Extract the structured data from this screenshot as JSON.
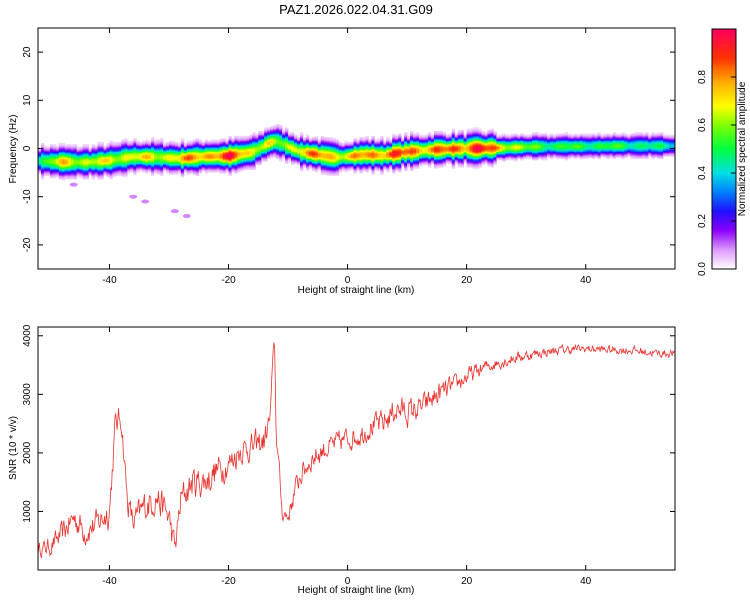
{
  "title": "PAZ1.2026.022.04.31.G09",
  "chart_data": [
    {
      "type": "heatmap",
      "xlabel": "Height of straight line (km)",
      "ylabel": "Frequency (Hz)",
      "xlim": [
        -52,
        55
      ],
      "ylim": [
        -25,
        25
      ],
      "xticks": [
        -40,
        -20,
        0,
        20,
        40
      ],
      "xtick_labels": [
        "-40",
        "-20",
        "0",
        "20",
        "40"
      ],
      "yticks": [
        -20,
        -10,
        0,
        10,
        20
      ],
      "ytick_labels": [
        "-20",
        "-10",
        "0",
        "10",
        "20"
      ],
      "colorbar": {
        "label": "Normalized spectral amplitude",
        "range": [
          0,
          1
        ],
        "ticks": [
          0.0,
          0.2,
          0.4,
          0.6,
          0.8
        ],
        "tick_labels": [
          "0.0",
          "0.2",
          "0.4",
          "0.6",
          "0.8"
        ]
      },
      "ridge": {
        "height_km": [
          -52,
          -48,
          -44,
          -40,
          -36,
          -32,
          -28,
          -24,
          -20,
          -16,
          -13,
          -12,
          -10,
          -8,
          -5,
          -2,
          0,
          3,
          6,
          10,
          14,
          18,
          22,
          26,
          30,
          35,
          40,
          45,
          50,
          55
        ],
        "frequency_hz": [
          -2.5,
          -2.7,
          -2.8,
          -2.4,
          -1.6,
          -1.7,
          -2.0,
          -1.6,
          -1.5,
          -0.7,
          1.3,
          1.6,
          0.5,
          -0.6,
          -1.2,
          -1.8,
          -1.6,
          -1.2,
          -1.4,
          -0.6,
          -0.2,
          0.0,
          0.1,
          0.2,
          0.4,
          0.5,
          0.5,
          0.6,
          0.6,
          0.6
        ],
        "peak_amplitude": [
          0.5,
          0.75,
          0.7,
          0.7,
          0.75,
          0.7,
          0.8,
          0.85,
          0.95,
          0.75,
          0.7,
          0.6,
          0.7,
          0.8,
          0.85,
          0.8,
          0.75,
          0.85,
          0.9,
          0.9,
          0.85,
          0.9,
          0.98,
          0.8,
          0.6,
          0.55,
          0.55,
          0.55,
          0.5,
          0.45
        ]
      },
      "scatter_blobs": [
        {
          "height_km": -46,
          "frequency_hz": -7.5
        },
        {
          "height_km": -36,
          "frequency_hz": -10.0
        },
        {
          "height_km": -34,
          "frequency_hz": -11.0
        },
        {
          "height_km": -29,
          "frequency_hz": -13.0
        },
        {
          "height_km": -27,
          "frequency_hz": -14.0
        }
      ]
    },
    {
      "type": "line",
      "xlabel": "Height of straight line (km)",
      "ylabel": "SNR (10 * v/v)",
      "xlim": [
        -52,
        55
      ],
      "ylim": [
        0,
        4150
      ],
      "xticks": [
        -40,
        -20,
        0,
        20,
        40
      ],
      "xtick_labels": [
        "-40",
        "-20",
        "0",
        "20",
        "40"
      ],
      "yticks": [
        1000,
        2000,
        3000,
        4000
      ],
      "ytick_labels": [
        "1000",
        "2000",
        "3000",
        "4000"
      ],
      "series": [
        {
          "name": "SNR",
          "color": "#e8322e",
          "x": [
            -52,
            -50,
            -48,
            -46,
            -44,
            -42,
            -40,
            -39,
            -38,
            -37,
            -36,
            -34,
            -32,
            -30,
            -29,
            -28,
            -26,
            -24,
            -22,
            -20,
            -18,
            -16,
            -14,
            -13,
            -12.3,
            -12,
            -11,
            -10,
            -9,
            -8,
            -6,
            -4,
            -2,
            0,
            2,
            4,
            6,
            8,
            10,
            12,
            14,
            16,
            18,
            20,
            24,
            28,
            32,
            36,
            40,
            44,
            48,
            52,
            55
          ],
          "y": [
            350,
            400,
            600,
            900,
            650,
            800,
            1000,
            2500,
            2600,
            1200,
            800,
            1100,
            1250,
            900,
            350,
            1200,
            1500,
            1500,
            1700,
            1800,
            2050,
            2100,
            2200,
            2600,
            4050,
            2400,
            1000,
            900,
            1300,
            1600,
            1900,
            2050,
            2150,
            2250,
            2300,
            2450,
            2500,
            2750,
            2700,
            2750,
            2900,
            3050,
            3150,
            3300,
            3500,
            3620,
            3700,
            3760,
            3780,
            3760,
            3750,
            3700,
            3700
          ],
          "noise_amplitude": [
            150,
            200,
            250,
            300,
            300,
            300,
            350,
            300,
            300,
            300,
            300,
            350,
            350,
            350,
            300,
            350,
            350,
            350,
            350,
            300,
            300,
            300,
            300,
            250,
            100,
            250,
            200,
            200,
            250,
            250,
            250,
            250,
            250,
            250,
            250,
            250,
            300,
            300,
            300,
            250,
            250,
            250,
            200,
            200,
            150,
            130,
            110,
            100,
            90,
            90,
            90,
            90,
            90
          ]
        }
      ]
    }
  ]
}
